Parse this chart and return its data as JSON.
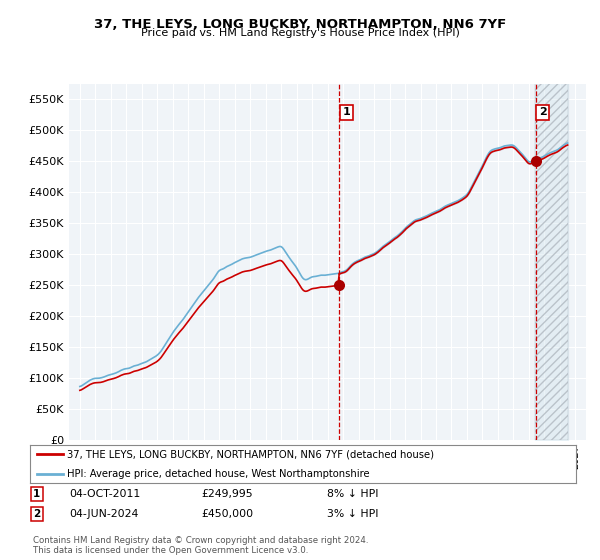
{
  "title": "37, THE LEYS, LONG BUCKBY, NORTHAMPTON, NN6 7YF",
  "subtitle": "Price paid vs. HM Land Registry's House Price Index (HPI)",
  "ylabel_ticks": [
    "£0",
    "£50K",
    "£100K",
    "£150K",
    "£200K",
    "£250K",
    "£300K",
    "£350K",
    "£400K",
    "£450K",
    "£500K",
    "£550K"
  ],
  "ytick_values": [
    0,
    50000,
    100000,
    150000,
    200000,
    250000,
    300000,
    350000,
    400000,
    450000,
    500000,
    550000
  ],
  "ylim": [
    0,
    575000
  ],
  "hpi_color": "#6ab0d4",
  "price_color": "#cc0000",
  "marker_color": "#aa0000",
  "sale1_date_label": "04-OCT-2011",
  "sale1_price": 249995,
  "sale1_hpi_pct": "8% ↓ HPI",
  "sale2_date_label": "04-JUN-2024",
  "sale2_price": 450000,
  "sale2_hpi_pct": "3% ↓ HPI",
  "legend_line1": "37, THE LEYS, LONG BUCKBY, NORTHAMPTON, NN6 7YF (detached house)",
  "legend_line2": "HPI: Average price, detached house, West Northamptonshire",
  "footer": "Contains HM Land Registry data © Crown copyright and database right 2024.\nThis data is licensed under the Open Government Licence v3.0.",
  "bg_color": "#ffffff",
  "plot_bg_color": "#f0f4f8",
  "grid_color": "#ffffff",
  "sale1_x": 2011.75,
  "sale2_x": 2024.43,
  "shade_color": "#c8dff0",
  "hatch_color": "#c0c0c0"
}
